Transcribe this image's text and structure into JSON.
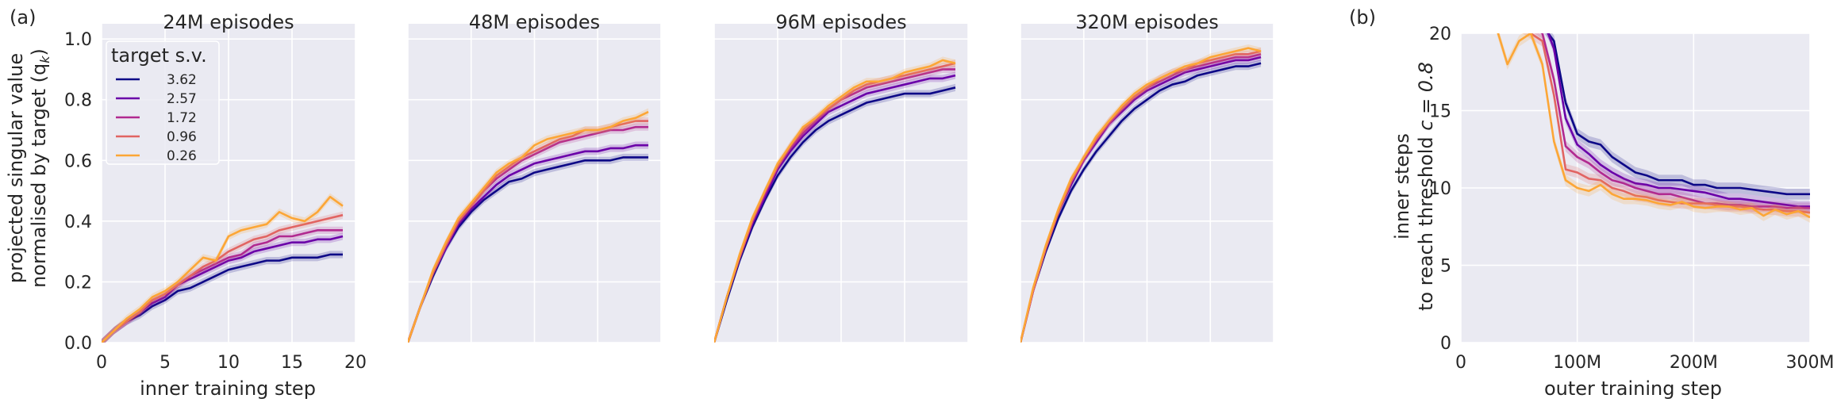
{
  "figure": {
    "label_a": "(a)",
    "label_b": "(b)"
  },
  "panel_a": {
    "ylabel_line1": "projected singular value",
    "ylabel_line2": "normalised by target (q",
    "ylabel_sub": "k",
    "ylabel_close": ")",
    "xlabel": "inner training step",
    "legend_title": "target s.v."
  },
  "panel_b": {
    "ylabel_line1": "inner steps",
    "ylabel_line2_prefix": "to reach threshold ",
    "ylabel_line2_math": "c = 0.8",
    "xlabel": "outer training step"
  },
  "colors": {
    "s362": "#0d0887",
    "s257": "#6a00a8",
    "s172": "#b12a90",
    "s096": "#e16462",
    "s026": "#fca636",
    "plot_bg": "#eaeaf2",
    "grid": "#ffffff"
  },
  "chart_data": [
    {
      "type": "line",
      "title": "24M episodes",
      "xlabel": "inner training step",
      "ylabel": "projected singular value normalised by target (q_k)",
      "xlim": [
        0,
        20
      ],
      "ylim": [
        0,
        1.05
      ],
      "xticks": [
        "0",
        "5",
        "10",
        "15",
        "20"
      ],
      "yticks": [
        "0.0",
        "0.2",
        "0.4",
        "0.6",
        "0.8",
        "1.0"
      ],
      "x": [
        0,
        1,
        2,
        3,
        4,
        5,
        6,
        7,
        8,
        9,
        10,
        11,
        12,
        13,
        14,
        15,
        16,
        17,
        18,
        19
      ],
      "legend_title": "target s.v.",
      "legend_position": "top-left",
      "series": [
        {
          "name": "3.62",
          "color": "#0d0887",
          "values": [
            0,
            0.04,
            0.07,
            0.09,
            0.12,
            0.14,
            0.17,
            0.18,
            0.2,
            0.22,
            0.24,
            0.25,
            0.26,
            0.27,
            0.27,
            0.28,
            0.28,
            0.28,
            0.29,
            0.29
          ]
        },
        {
          "name": "2.57",
          "color": "#6a00a8",
          "values": [
            0,
            0.04,
            0.07,
            0.1,
            0.13,
            0.15,
            0.19,
            0.21,
            0.23,
            0.25,
            0.27,
            0.28,
            0.3,
            0.31,
            0.32,
            0.33,
            0.33,
            0.34,
            0.34,
            0.35
          ]
        },
        {
          "name": "1.72",
          "color": "#b12a90",
          "values": [
            0,
            0.04,
            0.07,
            0.1,
            0.14,
            0.16,
            0.19,
            0.22,
            0.24,
            0.26,
            0.28,
            0.29,
            0.32,
            0.33,
            0.35,
            0.35,
            0.36,
            0.37,
            0.37,
            0.37
          ]
        },
        {
          "name": "0.96",
          "color": "#e16462",
          "values": [
            0,
            0.04,
            0.07,
            0.1,
            0.14,
            0.16,
            0.19,
            0.22,
            0.25,
            0.27,
            0.3,
            0.32,
            0.34,
            0.35,
            0.37,
            0.38,
            0.39,
            0.4,
            0.41,
            0.42
          ]
        },
        {
          "name": "0.26",
          "color": "#fca636",
          "values": [
            0,
            0.04,
            0.08,
            0.11,
            0.15,
            0.17,
            0.2,
            0.24,
            0.28,
            0.27,
            0.35,
            0.37,
            0.38,
            0.39,
            0.43,
            0.41,
            0.4,
            0.43,
            0.48,
            0.45
          ]
        }
      ]
    },
    {
      "type": "line",
      "title": "48M episodes",
      "xlim": [
        0,
        20
      ],
      "ylim": [
        0,
        1.05
      ],
      "x": [
        0,
        1,
        2,
        3,
        4,
        5,
        6,
        7,
        8,
        9,
        10,
        11,
        12,
        13,
        14,
        15,
        16,
        17,
        18,
        19
      ],
      "series": [
        {
          "name": "3.62",
          "color": "#0d0887",
          "values": [
            0,
            0.12,
            0.22,
            0.31,
            0.38,
            0.43,
            0.47,
            0.5,
            0.53,
            0.54,
            0.56,
            0.57,
            0.58,
            0.59,
            0.6,
            0.6,
            0.6,
            0.61,
            0.61,
            0.61
          ]
        },
        {
          "name": "2.57",
          "color": "#6a00a8",
          "values": [
            0,
            0.12,
            0.23,
            0.31,
            0.39,
            0.44,
            0.48,
            0.52,
            0.55,
            0.57,
            0.59,
            0.6,
            0.61,
            0.62,
            0.63,
            0.63,
            0.64,
            0.64,
            0.65,
            0.65
          ]
        },
        {
          "name": "1.72",
          "color": "#b12a90",
          "values": [
            0,
            0.12,
            0.23,
            0.32,
            0.4,
            0.45,
            0.5,
            0.54,
            0.57,
            0.6,
            0.62,
            0.64,
            0.66,
            0.67,
            0.68,
            0.69,
            0.7,
            0.7,
            0.71,
            0.71
          ]
        },
        {
          "name": "0.96",
          "color": "#e16462",
          "values": [
            0,
            0.12,
            0.23,
            0.32,
            0.4,
            0.45,
            0.5,
            0.55,
            0.58,
            0.61,
            0.63,
            0.65,
            0.67,
            0.68,
            0.7,
            0.7,
            0.71,
            0.72,
            0.73,
            0.73
          ]
        },
        {
          "name": "0.26",
          "color": "#fca636",
          "values": [
            0,
            0.12,
            0.24,
            0.33,
            0.41,
            0.46,
            0.51,
            0.56,
            0.59,
            0.61,
            0.65,
            0.67,
            0.68,
            0.69,
            0.7,
            0.7,
            0.71,
            0.73,
            0.74,
            0.76
          ]
        }
      ]
    },
    {
      "type": "line",
      "title": "96M episodes",
      "xlim": [
        0,
        20
      ],
      "ylim": [
        0,
        1.05
      ],
      "x": [
        0,
        1,
        2,
        3,
        4,
        5,
        6,
        7,
        8,
        9,
        10,
        11,
        12,
        13,
        14,
        15,
        16,
        17,
        18,
        19
      ],
      "series": [
        {
          "name": "3.62",
          "color": "#0d0887",
          "values": [
            0,
            0.14,
            0.27,
            0.38,
            0.47,
            0.55,
            0.61,
            0.66,
            0.7,
            0.73,
            0.75,
            0.77,
            0.79,
            0.8,
            0.81,
            0.82,
            0.82,
            0.82,
            0.83,
            0.84
          ]
        },
        {
          "name": "2.57",
          "color": "#6a00a8",
          "values": [
            0,
            0.15,
            0.28,
            0.39,
            0.48,
            0.57,
            0.63,
            0.68,
            0.72,
            0.76,
            0.78,
            0.8,
            0.82,
            0.83,
            0.84,
            0.85,
            0.86,
            0.87,
            0.87,
            0.88
          ]
        },
        {
          "name": "1.72",
          "color": "#b12a90",
          "values": [
            0,
            0.15,
            0.28,
            0.4,
            0.49,
            0.58,
            0.64,
            0.69,
            0.73,
            0.77,
            0.8,
            0.82,
            0.84,
            0.85,
            0.86,
            0.87,
            0.88,
            0.89,
            0.9,
            0.9
          ]
        },
        {
          "name": "0.96",
          "color": "#e16462",
          "values": [
            0,
            0.15,
            0.28,
            0.4,
            0.5,
            0.58,
            0.65,
            0.7,
            0.74,
            0.77,
            0.8,
            0.83,
            0.85,
            0.86,
            0.87,
            0.88,
            0.89,
            0.9,
            0.91,
            0.92
          ]
        },
        {
          "name": "0.26",
          "color": "#fca636",
          "values": [
            0,
            0.15,
            0.29,
            0.41,
            0.5,
            0.59,
            0.65,
            0.71,
            0.74,
            0.78,
            0.81,
            0.84,
            0.86,
            0.86,
            0.87,
            0.89,
            0.9,
            0.91,
            0.93,
            0.92
          ]
        }
      ]
    },
    {
      "type": "line",
      "title": "320M episodes",
      "xlim": [
        0,
        20
      ],
      "ylim": [
        0,
        1.05
      ],
      "x": [
        0,
        1,
        2,
        3,
        4,
        5,
        6,
        7,
        8,
        9,
        10,
        11,
        12,
        13,
        14,
        15,
        16,
        17,
        18,
        19
      ],
      "series": [
        {
          "name": "3.62",
          "color": "#0d0887",
          "values": [
            0,
            0.17,
            0.3,
            0.41,
            0.5,
            0.57,
            0.63,
            0.68,
            0.73,
            0.77,
            0.8,
            0.83,
            0.85,
            0.86,
            0.88,
            0.89,
            0.9,
            0.91,
            0.91,
            0.92
          ]
        },
        {
          "name": "2.57",
          "color": "#6a00a8",
          "values": [
            0,
            0.17,
            0.31,
            0.43,
            0.52,
            0.6,
            0.66,
            0.72,
            0.76,
            0.8,
            0.83,
            0.85,
            0.87,
            0.89,
            0.9,
            0.91,
            0.92,
            0.93,
            0.93,
            0.94
          ]
        },
        {
          "name": "1.72",
          "color": "#b12a90",
          "values": [
            0,
            0.17,
            0.31,
            0.43,
            0.53,
            0.6,
            0.67,
            0.72,
            0.77,
            0.81,
            0.84,
            0.86,
            0.88,
            0.9,
            0.91,
            0.92,
            0.93,
            0.94,
            0.94,
            0.95
          ]
        },
        {
          "name": "0.96",
          "color": "#e16462",
          "values": [
            0,
            0.17,
            0.31,
            0.43,
            0.53,
            0.61,
            0.67,
            0.73,
            0.77,
            0.81,
            0.84,
            0.87,
            0.89,
            0.9,
            0.92,
            0.93,
            0.94,
            0.95,
            0.95,
            0.96
          ]
        },
        {
          "name": "0.26",
          "color": "#fca636",
          "values": [
            0,
            0.18,
            0.32,
            0.44,
            0.54,
            0.61,
            0.68,
            0.73,
            0.78,
            0.82,
            0.85,
            0.87,
            0.89,
            0.91,
            0.92,
            0.94,
            0.95,
            0.96,
            0.97,
            0.96
          ]
        }
      ]
    },
    {
      "type": "line",
      "title": "",
      "xlabel": "outer training step",
      "ylabel": "inner steps to reach threshold c = 0.8",
      "xlim": [
        0,
        300
      ],
      "ylim": [
        0,
        20
      ],
      "xticks": [
        "0",
        "100M",
        "200M",
        "300M"
      ],
      "yticks": [
        "0",
        "5",
        "10",
        "15",
        "20"
      ],
      "x": [
        30,
        40,
        50,
        60,
        70,
        80,
        90,
        100,
        110,
        120,
        130,
        140,
        150,
        160,
        170,
        180,
        190,
        200,
        210,
        220,
        230,
        240,
        250,
        260,
        270,
        280,
        290,
        300
      ],
      "series": [
        {
          "name": "3.62",
          "color": "#0d0887",
          "values": [
            22,
            22,
            22,
            22,
            20.5,
            19.5,
            15.5,
            13.5,
            13,
            12.8,
            12,
            11.5,
            11,
            10.8,
            10.5,
            10.5,
            10.5,
            10.2,
            10.2,
            10,
            10,
            10,
            9.9,
            9.8,
            9.7,
            9.6,
            9.6,
            9.6
          ]
        },
        {
          "name": "2.57",
          "color": "#6a00a8",
          "values": [
            22,
            22,
            22,
            22,
            21,
            19,
            14.5,
            12.8,
            12.2,
            11.5,
            11,
            10.6,
            10.3,
            10.2,
            10,
            10,
            9.9,
            9.8,
            9.7,
            9.5,
            9.3,
            9.3,
            9.2,
            9.1,
            9,
            8.9,
            8.8,
            8.8
          ]
        },
        {
          "name": "1.72",
          "color": "#b12a90",
          "values": [
            22,
            22,
            21.5,
            20.5,
            20,
            17,
            12.7,
            12,
            11.6,
            11,
            10.5,
            10.3,
            10,
            9.8,
            9.6,
            9.6,
            9.4,
            9.2,
            9,
            9,
            8.9,
            8.9,
            8.8,
            8.8,
            8.8,
            8.7,
            8.7,
            8.7
          ]
        },
        {
          "name": "0.96",
          "color": "#e16462",
          "values": [
            22,
            21,
            20.5,
            20,
            19.5,
            16,
            11.2,
            11,
            10.6,
            10.5,
            10,
            9.8,
            9.5,
            9.4,
            9.2,
            9.1,
            9,
            9,
            9,
            8.9,
            8.8,
            8.8,
            8.7,
            8.6,
            8.6,
            8.5,
            8.5,
            8.4
          ]
        },
        {
          "name": "0.26",
          "color": "#fca636",
          "values": [
            20.5,
            18,
            19.5,
            20,
            18,
            13,
            10.5,
            10,
            9.8,
            10.2,
            9.6,
            9.3,
            9.3,
            9.2,
            9,
            8.9,
            9.1,
            8.8,
            8.7,
            8.8,
            8.8,
            8.6,
            8.7,
            8.2,
            8.6,
            8.3,
            8.5,
            8.1
          ]
        }
      ]
    }
  ]
}
